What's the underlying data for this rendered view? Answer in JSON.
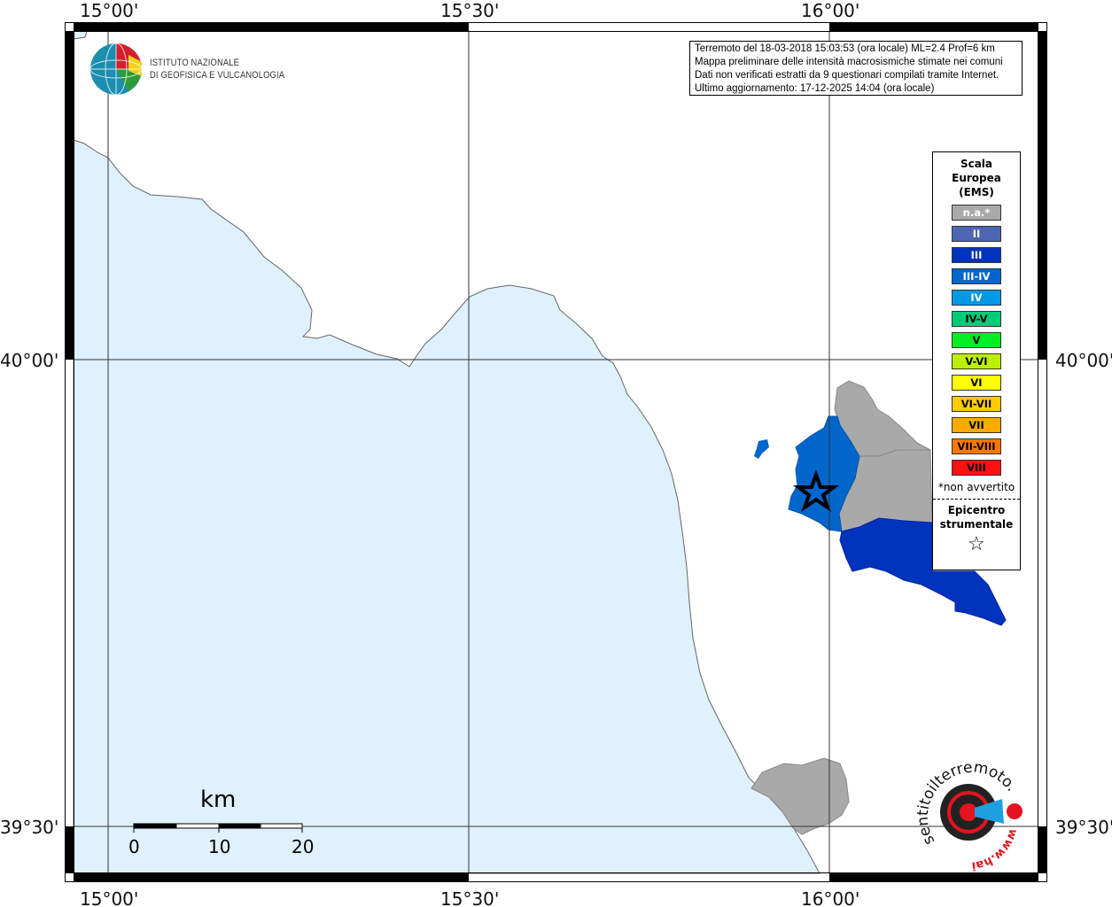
{
  "map": {
    "colors": {
      "sea": "#dff1fd",
      "land": "#ffffff",
      "coast": "#666666",
      "grid": "#333333"
    },
    "lon_labels": [
      "15°00'",
      "15°30'",
      "16°00'"
    ],
    "lat_labels": [
      "40°00'",
      "39°30'"
    ]
  },
  "logo_ingv": {
    "line1": "ISTITUTO NAZIONALE",
    "line2": "DI GEOFISICA E VULCANOLOGIA"
  },
  "info": {
    "line1": "Terremoto del 18-03-2018 15:03:53 (ora locale) ML=2.4 Prof=6 km",
    "line2": "Mappa preliminare delle intensità macrosismiche stimate nei comuni",
    "line3": "Dati non verificati estratti da 9 questionari compilati tramite Internet.",
    "line4": "Ultimo aggiornamento: 17-12-2025 14:04 (ora locale)"
  },
  "legend": {
    "title1": "Scala",
    "title2": "Europea",
    "title3": "(EMS)",
    "items": [
      {
        "label": "n.a.*",
        "color": "#a9a9a9",
        "text": "#ffffff"
      },
      {
        "label": "II",
        "color": "#4d66b3",
        "text": "#ffffff"
      },
      {
        "label": "III",
        "color": "#0033bb",
        "text": "#ffffff"
      },
      {
        "label": "III-IV",
        "color": "#0066cc",
        "text": "#ffffff"
      },
      {
        "label": "IV",
        "color": "#0099e6",
        "text": "#ffffff"
      },
      {
        "label": "IV-V",
        "color": "#00cc77",
        "text": "#000000"
      },
      {
        "label": "V",
        "color": "#00ee22",
        "text": "#000000"
      },
      {
        "label": "V-VI",
        "color": "#bbf000",
        "text": "#000000"
      },
      {
        "label": "VI",
        "color": "#ffff00",
        "text": "#000000"
      },
      {
        "label": "VI-VII",
        "color": "#ffcc00",
        "text": "#000000"
      },
      {
        "label": "VII",
        "color": "#ffaa00",
        "text": "#000000"
      },
      {
        "label": "VII-VIII",
        "color": "#ff7700",
        "text": "#000000"
      },
      {
        "label": "VIII",
        "color": "#ff1111",
        "text": "#000000"
      }
    ],
    "note": "*non avvertito",
    "epicenter1": "Epicentro",
    "epicenter2": "strumentale",
    "epicenter_symbol": "☆"
  },
  "scale_bar": {
    "unit": "km",
    "ticks": [
      "0",
      "10",
      "20"
    ]
  },
  "logo_haisentito": {
    "text": "www.haisentitoilterremoto.it"
  }
}
